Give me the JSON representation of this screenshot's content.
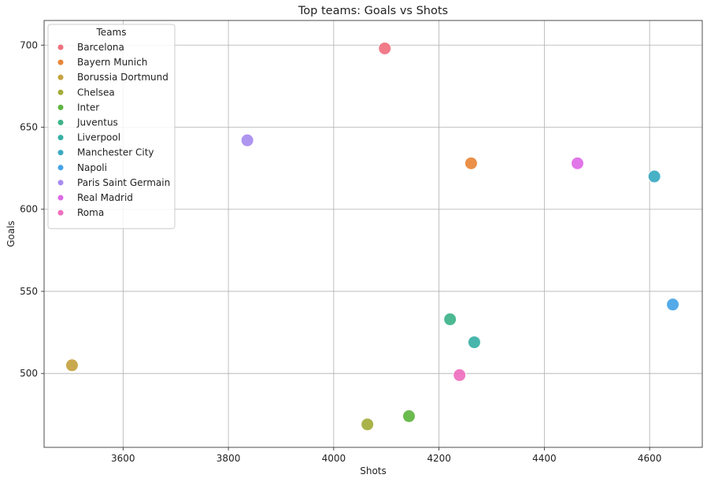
{
  "chart_data": {
    "type": "scatter",
    "title": "Top teams: Goals vs Shots",
    "xlabel": "Shots",
    "ylabel": "Goals",
    "xlim": [
      3450,
      4700
    ],
    "ylim": [
      455,
      715
    ],
    "xticks": [
      3600,
      3800,
      4000,
      4200,
      4400,
      4600
    ],
    "yticks": [
      500,
      550,
      600,
      650,
      700
    ],
    "grid": true,
    "legend": {
      "title": "Teams",
      "placement": "top-left"
    },
    "series": [
      {
        "name": "Barcelona",
        "color": "#f0707e",
        "x": [
          4097
        ],
        "y": [
          698
        ]
      },
      {
        "name": "Bayern Munich",
        "color": "#e8873a",
        "x": [
          4261
        ],
        "y": [
          628
        ]
      },
      {
        "name": "Borussia Dortmund",
        "color": "#c4a23f",
        "x": [
          3503
        ],
        "y": [
          505
        ]
      },
      {
        "name": "Chelsea",
        "color": "#a3ad3b",
        "x": [
          4064
        ],
        "y": [
          469
        ]
      },
      {
        "name": "Inter",
        "color": "#5fb540",
        "x": [
          4143
        ],
        "y": [
          474
        ]
      },
      {
        "name": "Juventus",
        "color": "#3db389",
        "x": [
          4221
        ],
        "y": [
          533
        ]
      },
      {
        "name": "Liverpool",
        "color": "#38b0a5",
        "x": [
          4267
        ],
        "y": [
          519
        ]
      },
      {
        "name": "Manchester City",
        "color": "#3aaac1",
        "x": [
          4609
        ],
        "y": [
          620
        ]
      },
      {
        "name": "Napoli",
        "color": "#45a3e6",
        "x": [
          4644
        ],
        "y": [
          542
        ]
      },
      {
        "name": "Paris Saint Germain",
        "color": "#a78cef",
        "x": [
          3836
        ],
        "y": [
          642
        ]
      },
      {
        "name": "Real Madrid",
        "color": "#de6ae6",
        "x": [
          4463
        ],
        "y": [
          628
        ]
      },
      {
        "name": "Roma",
        "color": "#ef6fbf",
        "x": [
          4239
        ],
        "y": [
          499
        ]
      }
    ]
  }
}
